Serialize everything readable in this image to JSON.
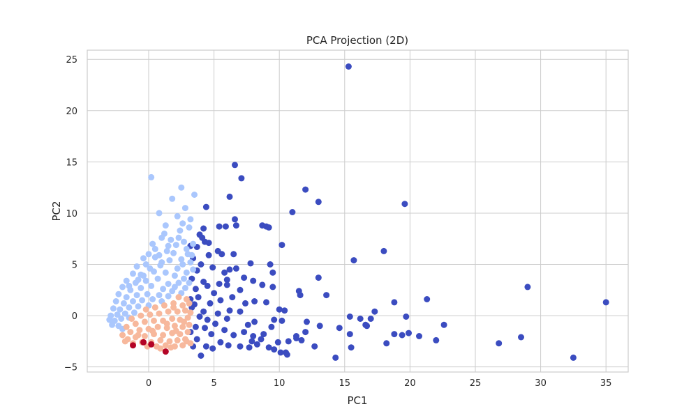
{
  "chart_data": {
    "type": "scatter",
    "title": "PCA Projection (2D)",
    "xlabel": "PC1",
    "ylabel": "PC2",
    "xlim": [
      -4.7,
      36.7
    ],
    "ylim": [
      -5.5,
      25.9
    ],
    "xticks": [
      0,
      5,
      10,
      15,
      20,
      25,
      30,
      35
    ],
    "yticks": [
      -5,
      0,
      5,
      10,
      15,
      20,
      25
    ],
    "grid": true,
    "legend": "none",
    "series": [
      {
        "color": "#3b4cc0",
        "points": [
          [
            15.3,
            24.3
          ],
          [
            6.6,
            14.7
          ],
          [
            7.1,
            13.4
          ],
          [
            6.2,
            11.6
          ],
          [
            12.0,
            12.3
          ],
          [
            13.0,
            11.1
          ],
          [
            4.4,
            10.6
          ],
          [
            6.6,
            9.4
          ],
          [
            11.0,
            10.1
          ],
          [
            19.6,
            10.9
          ],
          [
            5.4,
            8.7
          ],
          [
            5.9,
            8.7
          ],
          [
            6.7,
            8.8
          ],
          [
            8.7,
            8.8
          ],
          [
            9.0,
            8.7
          ],
          [
            9.2,
            8.6
          ],
          [
            4.2,
            8.5
          ],
          [
            3.9,
            7.9
          ],
          [
            4.1,
            7.6
          ],
          [
            4.3,
            7.2
          ],
          [
            3.7,
            6.7
          ],
          [
            4.6,
            7.1
          ],
          [
            5.3,
            6.3
          ],
          [
            5.6,
            6.0
          ],
          [
            6.5,
            6.0
          ],
          [
            4.6,
            5.9
          ],
          [
            3.2,
            6.8
          ],
          [
            10.2,
            6.9
          ],
          [
            15.7,
            5.4
          ],
          [
            18.0,
            6.3
          ],
          [
            7.8,
            5.1
          ],
          [
            9.3,
            5.0
          ],
          [
            6.7,
            4.6
          ],
          [
            6.2,
            4.5
          ],
          [
            13.0,
            3.7
          ],
          [
            8.7,
            3.0
          ],
          [
            9.5,
            2.8
          ],
          [
            11.5,
            2.4
          ],
          [
            11.6,
            2.0
          ],
          [
            13.6,
            2.0
          ],
          [
            5.4,
            3.1
          ],
          [
            6.0,
            3.0
          ],
          [
            7.0,
            2.5
          ],
          [
            4.2,
            3.3
          ],
          [
            5.0,
            2.2
          ],
          [
            3.6,
            2.6
          ],
          [
            4.5,
            2.9
          ],
          [
            3.8,
            1.8
          ],
          [
            5.5,
            1.5
          ],
          [
            4.7,
            1.2
          ],
          [
            3.2,
            1.6
          ],
          [
            3.5,
            1.1
          ],
          [
            6.4,
            1.8
          ],
          [
            7.4,
            1.2
          ],
          [
            8.1,
            1.4
          ],
          [
            9.0,
            1.3
          ],
          [
            10.0,
            0.6
          ],
          [
            10.4,
            0.5
          ],
          [
            6.2,
            0.5
          ],
          [
            7.0,
            0.4
          ],
          [
            4.2,
            0.4
          ],
          [
            5.3,
            0.2
          ],
          [
            3.3,
            0.8
          ],
          [
            3.9,
            -0.1
          ],
          [
            4.5,
            -0.4
          ],
          [
            6.0,
            -0.3
          ],
          [
            8.1,
            -0.6
          ],
          [
            9.6,
            -0.4
          ],
          [
            10.2,
            -0.5
          ],
          [
            12.1,
            -0.6
          ],
          [
            15.4,
            -0.1
          ],
          [
            16.2,
            -0.3
          ],
          [
            17.3,
            0.4
          ],
          [
            17.0,
            -0.3
          ],
          [
            18.8,
            1.3
          ],
          [
            19.7,
            -0.1
          ],
          [
            21.3,
            1.6
          ],
          [
            22.6,
            -0.9
          ],
          [
            16.6,
            -0.9
          ],
          [
            16.7,
            -1.0
          ],
          [
            18.8,
            -1.8
          ],
          [
            19.4,
            -1.9
          ],
          [
            20.7,
            -2.0
          ],
          [
            19.9,
            -1.7
          ],
          [
            15.4,
            -1.8
          ],
          [
            14.6,
            -1.2
          ],
          [
            13.1,
            -1.0
          ],
          [
            12.0,
            -1.6
          ],
          [
            11.3,
            -2.2
          ],
          [
            10.7,
            -2.5
          ],
          [
            11.7,
            -2.4
          ],
          [
            12.7,
            -3.0
          ],
          [
            18.2,
            -2.7
          ],
          [
            22.0,
            -2.4
          ],
          [
            26.8,
            -2.7
          ],
          [
            28.5,
            -2.1
          ],
          [
            29.0,
            2.8
          ],
          [
            35.0,
            1.3
          ],
          [
            32.5,
            -4.1
          ],
          [
            15.5,
            -3.1
          ],
          [
            14.3,
            -4.1
          ],
          [
            10.5,
            -3.6
          ],
          [
            10.6,
            -3.8
          ],
          [
            10.1,
            -3.6
          ],
          [
            9.2,
            -3.1
          ],
          [
            9.6,
            -3.3
          ],
          [
            8.3,
            -2.8
          ],
          [
            7.7,
            -3.1
          ],
          [
            7.0,
            -3.0
          ],
          [
            6.1,
            -2.9
          ],
          [
            5.5,
            -2.6
          ],
          [
            4.9,
            -3.2
          ],
          [
            4.4,
            -3.0
          ],
          [
            4.0,
            -3.9
          ],
          [
            3.7,
            -2.3
          ],
          [
            3.4,
            -3.0
          ],
          [
            3.2,
            -1.6
          ],
          [
            3.6,
            -1.1
          ],
          [
            4.8,
            -1.8
          ],
          [
            5.8,
            -1.4
          ],
          [
            6.5,
            -1.9
          ],
          [
            7.3,
            -1.6
          ],
          [
            8.0,
            -2.0
          ],
          [
            8.8,
            -1.8
          ],
          [
            9.4,
            -1.1
          ],
          [
            7.6,
            -0.9
          ],
          [
            5.1,
            -0.8
          ],
          [
            4.3,
            -1.2
          ],
          [
            3.3,
            3.6
          ],
          [
            3.7,
            4.4
          ],
          [
            4.9,
            4.7
          ],
          [
            5.8,
            4.2
          ],
          [
            4.0,
            5.0
          ],
          [
            3.4,
            5.6
          ],
          [
            6.0,
            3.5
          ],
          [
            7.3,
            3.7
          ],
          [
            8.0,
            3.4
          ],
          [
            9.5,
            4.2
          ],
          [
            11.3,
            -2.0
          ],
          [
            9.9,
            -2.6
          ],
          [
            8.6,
            -2.3
          ],
          [
            7.9,
            -2.5
          ]
        ]
      },
      {
        "color": "#aac7fd",
        "points": [
          [
            0.2,
            13.5
          ],
          [
            2.5,
            12.5
          ],
          [
            1.8,
            11.4
          ],
          [
            3.5,
            11.8
          ],
          [
            0.8,
            10.0
          ],
          [
            2.8,
            10.5
          ],
          [
            2.2,
            9.7
          ],
          [
            3.2,
            9.4
          ],
          [
            2.6,
            9.0
          ],
          [
            1.3,
            8.8
          ],
          [
            2.4,
            8.3
          ],
          [
            3.1,
            8.6
          ],
          [
            1.2,
            8.0
          ],
          [
            1.0,
            7.6
          ],
          [
            1.7,
            7.4
          ],
          [
            2.3,
            7.6
          ],
          [
            2.7,
            7.2
          ],
          [
            0.3,
            7.0
          ],
          [
            0.5,
            6.5
          ],
          [
            1.5,
            6.8
          ],
          [
            2.1,
            6.9
          ],
          [
            2.9,
            6.5
          ],
          [
            3.4,
            7.0
          ],
          [
            3.0,
            6.0
          ],
          [
            0.0,
            6.0
          ],
          [
            -0.4,
            5.6
          ],
          [
            0.8,
            5.9
          ],
          [
            1.9,
            6.1
          ],
          [
            2.5,
            5.5
          ],
          [
            3.2,
            5.2
          ],
          [
            -0.9,
            4.8
          ],
          [
            -0.2,
            5.0
          ],
          [
            0.9,
            4.9
          ],
          [
            1.6,
            5.4
          ],
          [
            2.2,
            4.6
          ],
          [
            2.9,
            4.2
          ],
          [
            3.4,
            4.5
          ],
          [
            -1.2,
            4.1
          ],
          [
            -0.6,
            4.0
          ],
          [
            0.4,
            4.3
          ],
          [
            1.3,
            4.2
          ],
          [
            2.0,
            3.9
          ],
          [
            2.7,
            3.6
          ],
          [
            3.1,
            3.2
          ],
          [
            -1.7,
            3.4
          ],
          [
            -1.0,
            3.2
          ],
          [
            -0.2,
            3.4
          ],
          [
            0.7,
            3.6
          ],
          [
            1.5,
            3.1
          ],
          [
            2.3,
            3.2
          ],
          [
            2.8,
            2.7
          ],
          [
            -2.0,
            2.8
          ],
          [
            -1.4,
            2.5
          ],
          [
            -0.6,
            2.7
          ],
          [
            0.2,
            2.9
          ],
          [
            1.1,
            2.6
          ],
          [
            1.8,
            2.4
          ],
          [
            2.5,
            2.2
          ],
          [
            -2.3,
            2.1
          ],
          [
            -1.7,
            1.8
          ],
          [
            -0.9,
            2.0
          ],
          [
            -0.1,
            2.1
          ],
          [
            0.8,
            2.0
          ],
          [
            1.5,
            1.9
          ],
          [
            -2.5,
            1.4
          ],
          [
            -1.9,
            1.2
          ],
          [
            -1.2,
            1.4
          ],
          [
            -0.5,
            1.5
          ],
          [
            0.3,
            1.6
          ],
          [
            1.0,
            1.4
          ],
          [
            -2.7,
            0.7
          ],
          [
            -2.2,
            0.6
          ],
          [
            -1.5,
            0.8
          ],
          [
            -0.8,
            0.9
          ],
          [
            0.0,
            1.0
          ],
          [
            -2.9,
            0.0
          ],
          [
            -2.4,
            0.1
          ],
          [
            -1.8,
            0.2
          ],
          [
            -1.1,
            0.3
          ],
          [
            -3.0,
            -0.4
          ],
          [
            -2.6,
            -0.5
          ],
          [
            -2.1,
            -0.3
          ],
          [
            -1.5,
            -0.2
          ],
          [
            -2.8,
            -0.9
          ],
          [
            -2.3,
            -1.0
          ],
          [
            -2.0,
            -1.3
          ],
          [
            -0.4,
            3.9
          ],
          [
            1.0,
            5.2
          ],
          [
            0.5,
            5.7
          ],
          [
            2.6,
            5.0
          ],
          [
            3.3,
            5.9
          ],
          [
            1.4,
            6.3
          ],
          [
            -1.5,
            2.9
          ],
          [
            2.0,
            2.8
          ],
          [
            0.1,
            4.6
          ],
          [
            -0.8,
            3.5
          ]
        ]
      },
      {
        "color": "#f7b89c",
        "points": [
          [
            2.3,
            1.8
          ],
          [
            2.9,
            1.6
          ],
          [
            3.1,
            1.2
          ],
          [
            2.6,
            1.0
          ],
          [
            1.9,
            1.2
          ],
          [
            1.2,
            1.0
          ],
          [
            0.5,
            0.8
          ],
          [
            -0.2,
            0.6
          ],
          [
            2.8,
            0.5
          ],
          [
            2.2,
            0.4
          ],
          [
            1.5,
            0.4
          ],
          [
            0.8,
            0.2
          ],
          [
            0.1,
            0.1
          ],
          [
            -0.6,
            0.0
          ],
          [
            -1.3,
            -0.3
          ],
          [
            3.0,
            -0.2
          ],
          [
            2.4,
            -0.4
          ],
          [
            1.8,
            -0.3
          ],
          [
            1.1,
            -0.5
          ],
          [
            0.4,
            -0.5
          ],
          [
            -0.3,
            -0.6
          ],
          [
            -1.0,
            -0.8
          ],
          [
            -1.7,
            -1.1
          ],
          [
            3.1,
            -0.9
          ],
          [
            2.6,
            -1.1
          ],
          [
            2.0,
            -1.0
          ],
          [
            1.4,
            -1.2
          ],
          [
            0.7,
            -1.1
          ],
          [
            0.0,
            -1.3
          ],
          [
            -0.7,
            -1.4
          ],
          [
            -1.4,
            -1.6
          ],
          [
            -2.0,
            -1.9
          ],
          [
            3.0,
            -1.6
          ],
          [
            2.4,
            -1.8
          ],
          [
            1.8,
            -1.7
          ],
          [
            1.1,
            -1.9
          ],
          [
            0.4,
            -1.8
          ],
          [
            -0.3,
            -2.0
          ],
          [
            -1.0,
            -2.1
          ],
          [
            -1.6,
            -2.3
          ],
          [
            2.8,
            -2.3
          ],
          [
            2.2,
            -2.4
          ],
          [
            1.6,
            -2.5
          ],
          [
            0.9,
            -2.4
          ],
          [
            0.2,
            -2.6
          ],
          [
            -0.5,
            -2.6
          ],
          [
            -1.2,
            -2.7
          ],
          [
            2.6,
            -2.9
          ],
          [
            2.0,
            -3.0
          ],
          [
            1.3,
            -2.9
          ],
          [
            0.6,
            -3.0
          ],
          [
            -0.1,
            -3.0
          ],
          [
            1.7,
            -3.1
          ],
          [
            0.9,
            -3.2
          ],
          [
            3.2,
            -2.7
          ],
          [
            2.9,
            -2.5
          ],
          [
            2.1,
            -1.5
          ],
          [
            1.4,
            -0.8
          ],
          [
            0.3,
            -1.5
          ],
          [
            -0.8,
            -1.9
          ],
          [
            2.7,
            -0.6
          ],
          [
            1.9,
            0.8
          ],
          [
            3.2,
            0.3
          ],
          [
            -1.8,
            -2.5
          ]
        ]
      },
      {
        "color": "#b40426",
        "points": [
          [
            -1.2,
            -2.9
          ],
          [
            1.3,
            -3.5
          ],
          [
            -0.4,
            -2.6
          ],
          [
            0.2,
            -2.8
          ]
        ]
      }
    ]
  }
}
